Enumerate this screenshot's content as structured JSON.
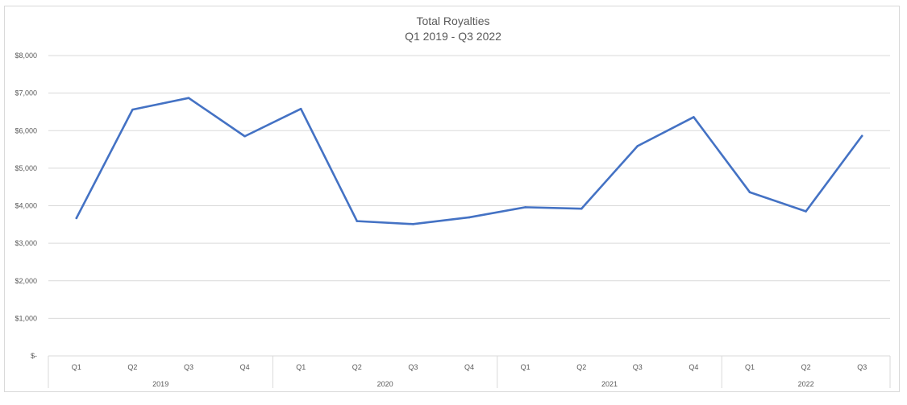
{
  "chart_data": {
    "type": "line",
    "title": "Total Royalties",
    "subtitle": "Q1 2019 - Q3 2022",
    "xlabel": "",
    "ylabel": "",
    "ylim": [
      0,
      8000
    ],
    "yticks": [
      0,
      1000,
      2000,
      3000,
      4000,
      5000,
      6000,
      7000,
      8000
    ],
    "ytick_labels": [
      "$-",
      "$1,000",
      "$2,000",
      "$3,000",
      "$4,000",
      "$5,000",
      "$6,000",
      "$7,000",
      "$8,000"
    ],
    "grid": true,
    "legend": "none",
    "color": "#4472c4",
    "groups": [
      {
        "label": "2019",
        "quarters": [
          "Q1",
          "Q2",
          "Q3",
          "Q4"
        ]
      },
      {
        "label": "2020",
        "quarters": [
          "Q1",
          "Q2",
          "Q3",
          "Q4"
        ]
      },
      {
        "label": "2021",
        "quarters": [
          "Q1",
          "Q2",
          "Q3",
          "Q4"
        ]
      },
      {
        "label": "2022",
        "quarters": [
          "Q1",
          "Q2",
          "Q3"
        ]
      }
    ],
    "series": [
      {
        "values": [
          3670,
          6560,
          6870,
          5850,
          6580,
          3590,
          3510,
          3690,
          3960,
          3920,
          5590,
          6360,
          4360,
          3850,
          5860
        ]
      }
    ]
  }
}
